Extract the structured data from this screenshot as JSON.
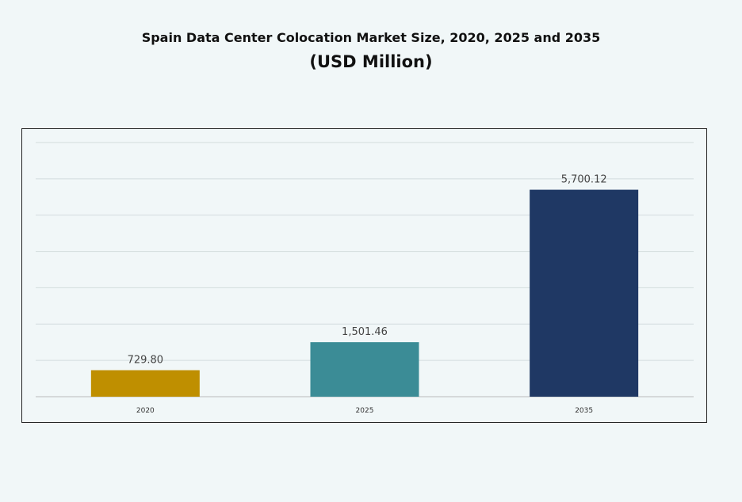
{
  "chart_data": {
    "type": "bar",
    "title": "Spain Data Center Colocation Market Size, 2020, 2025 and 2035",
    "subtitle": "(USD Million)",
    "categories": [
      "2020",
      "2025",
      "2035"
    ],
    "values": [
      729.8,
      1501.46,
      5700.12
    ],
    "data_labels": [
      "729.80",
      "1,501.46",
      "5,700.12"
    ],
    "colors": [
      "#bf8f00",
      "#3b8c96",
      "#1f3864"
    ],
    "xlabel": "",
    "ylabel": "",
    "ylim": [
      0,
      7000
    ],
    "grid": true,
    "y_tick_labels_shown": false,
    "legend": "none"
  }
}
